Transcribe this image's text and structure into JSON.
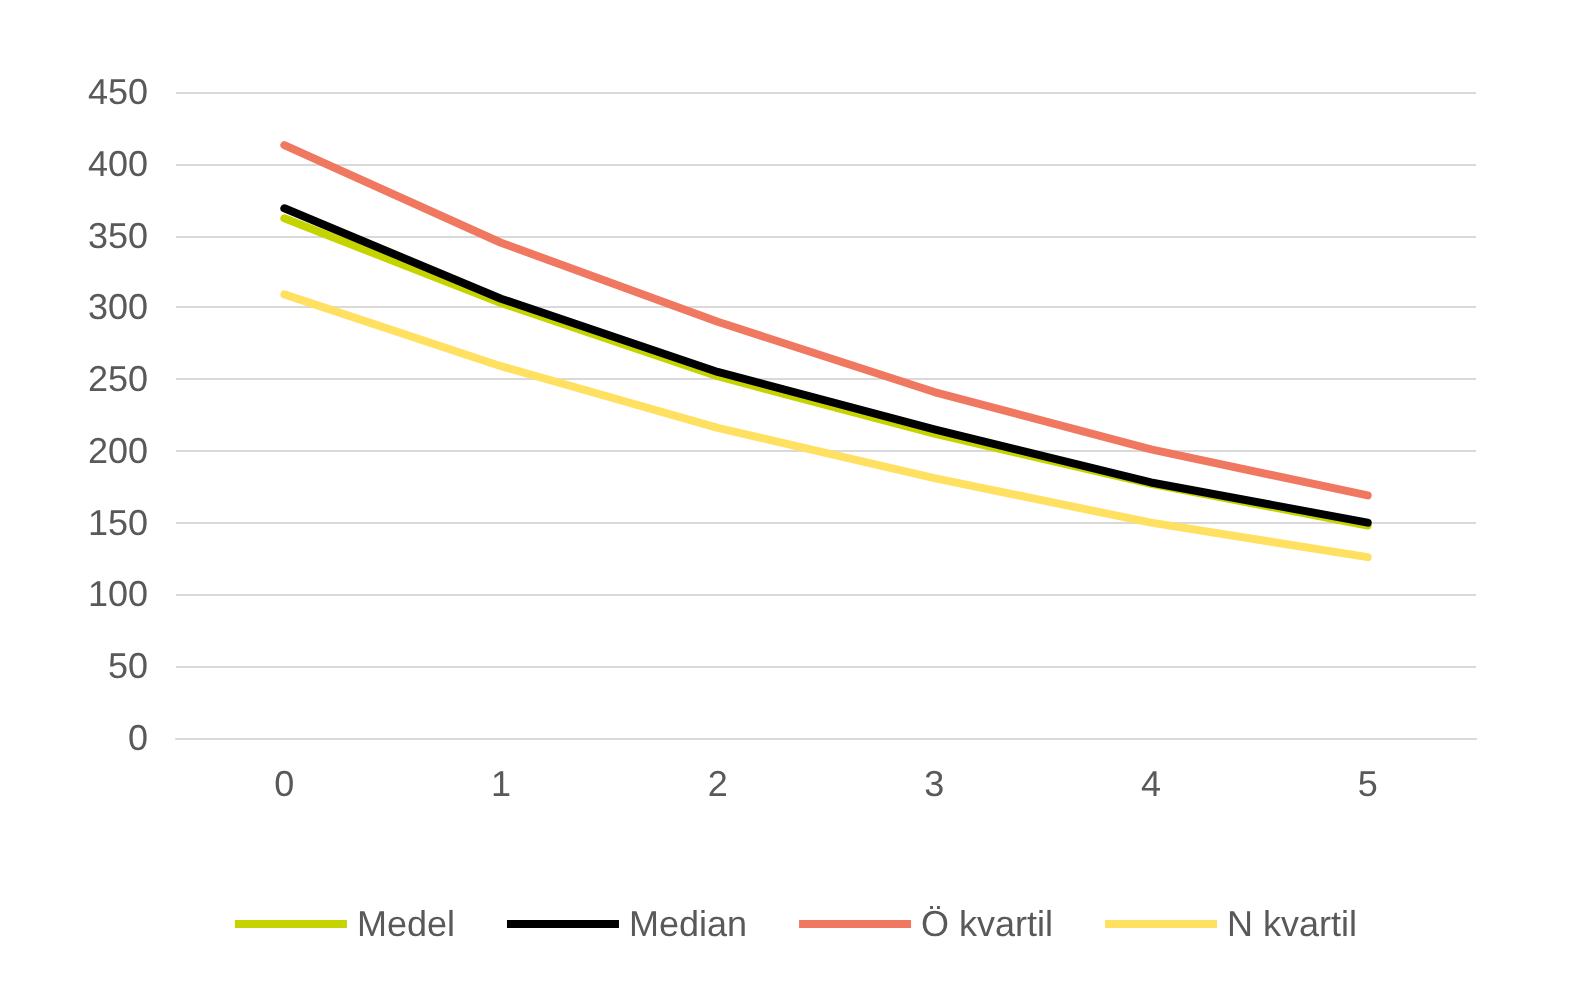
{
  "chart_data": {
    "type": "line",
    "categories": [
      "0",
      "1",
      "2",
      "3",
      "4",
      "5"
    ],
    "series": [
      {
        "name": "Medel",
        "color": "#c5d400",
        "values": [
          362,
          303,
          252,
          212,
          177,
          148
        ]
      },
      {
        "name": "Median",
        "color": "#000000",
        "values": [
          369,
          306,
          255,
          215,
          178,
          150
        ]
      },
      {
        "name": "Ö kvartil",
        "color": "#f07860",
        "values": [
          413,
          345,
          290,
          241,
          201,
          169
        ]
      },
      {
        "name": "N kvartil",
        "color": "#ffe060",
        "values": [
          309,
          259,
          216,
          181,
          150,
          126
        ]
      }
    ],
    "ylim": [
      0,
      450
    ],
    "yticks": [
      0,
      50,
      100,
      150,
      200,
      250,
      300,
      350,
      400,
      450
    ],
    "grid": "y",
    "legend": "bottom",
    "marker": "none",
    "line_style": "solid"
  }
}
